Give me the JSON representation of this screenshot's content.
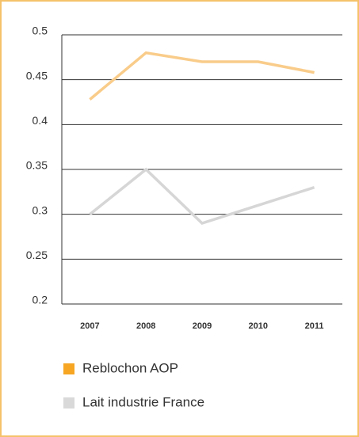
{
  "chart_data": {
    "type": "line",
    "categories": [
      "2007",
      "2008",
      "2009",
      "2010",
      "2011"
    ],
    "series": [
      {
        "name": "Reblochon AOP",
        "color": "#f9cc8a",
        "legend_color": "#f6a623",
        "values": [
          0.428,
          0.48,
          0.47,
          0.47,
          0.458
        ]
      },
      {
        "name": "Lait industrie France",
        "color": "#d6d6d6",
        "legend_color": "#d9d9d9",
        "values": [
          0.3,
          0.35,
          0.29,
          0.31,
          0.33
        ]
      }
    ],
    "ylim": [
      0.2,
      0.5
    ],
    "yticks": [
      0.5,
      0.45,
      0.4,
      0.35,
      0.3,
      0.25,
      0.2
    ],
    "grid": true,
    "legend": "bottom"
  }
}
